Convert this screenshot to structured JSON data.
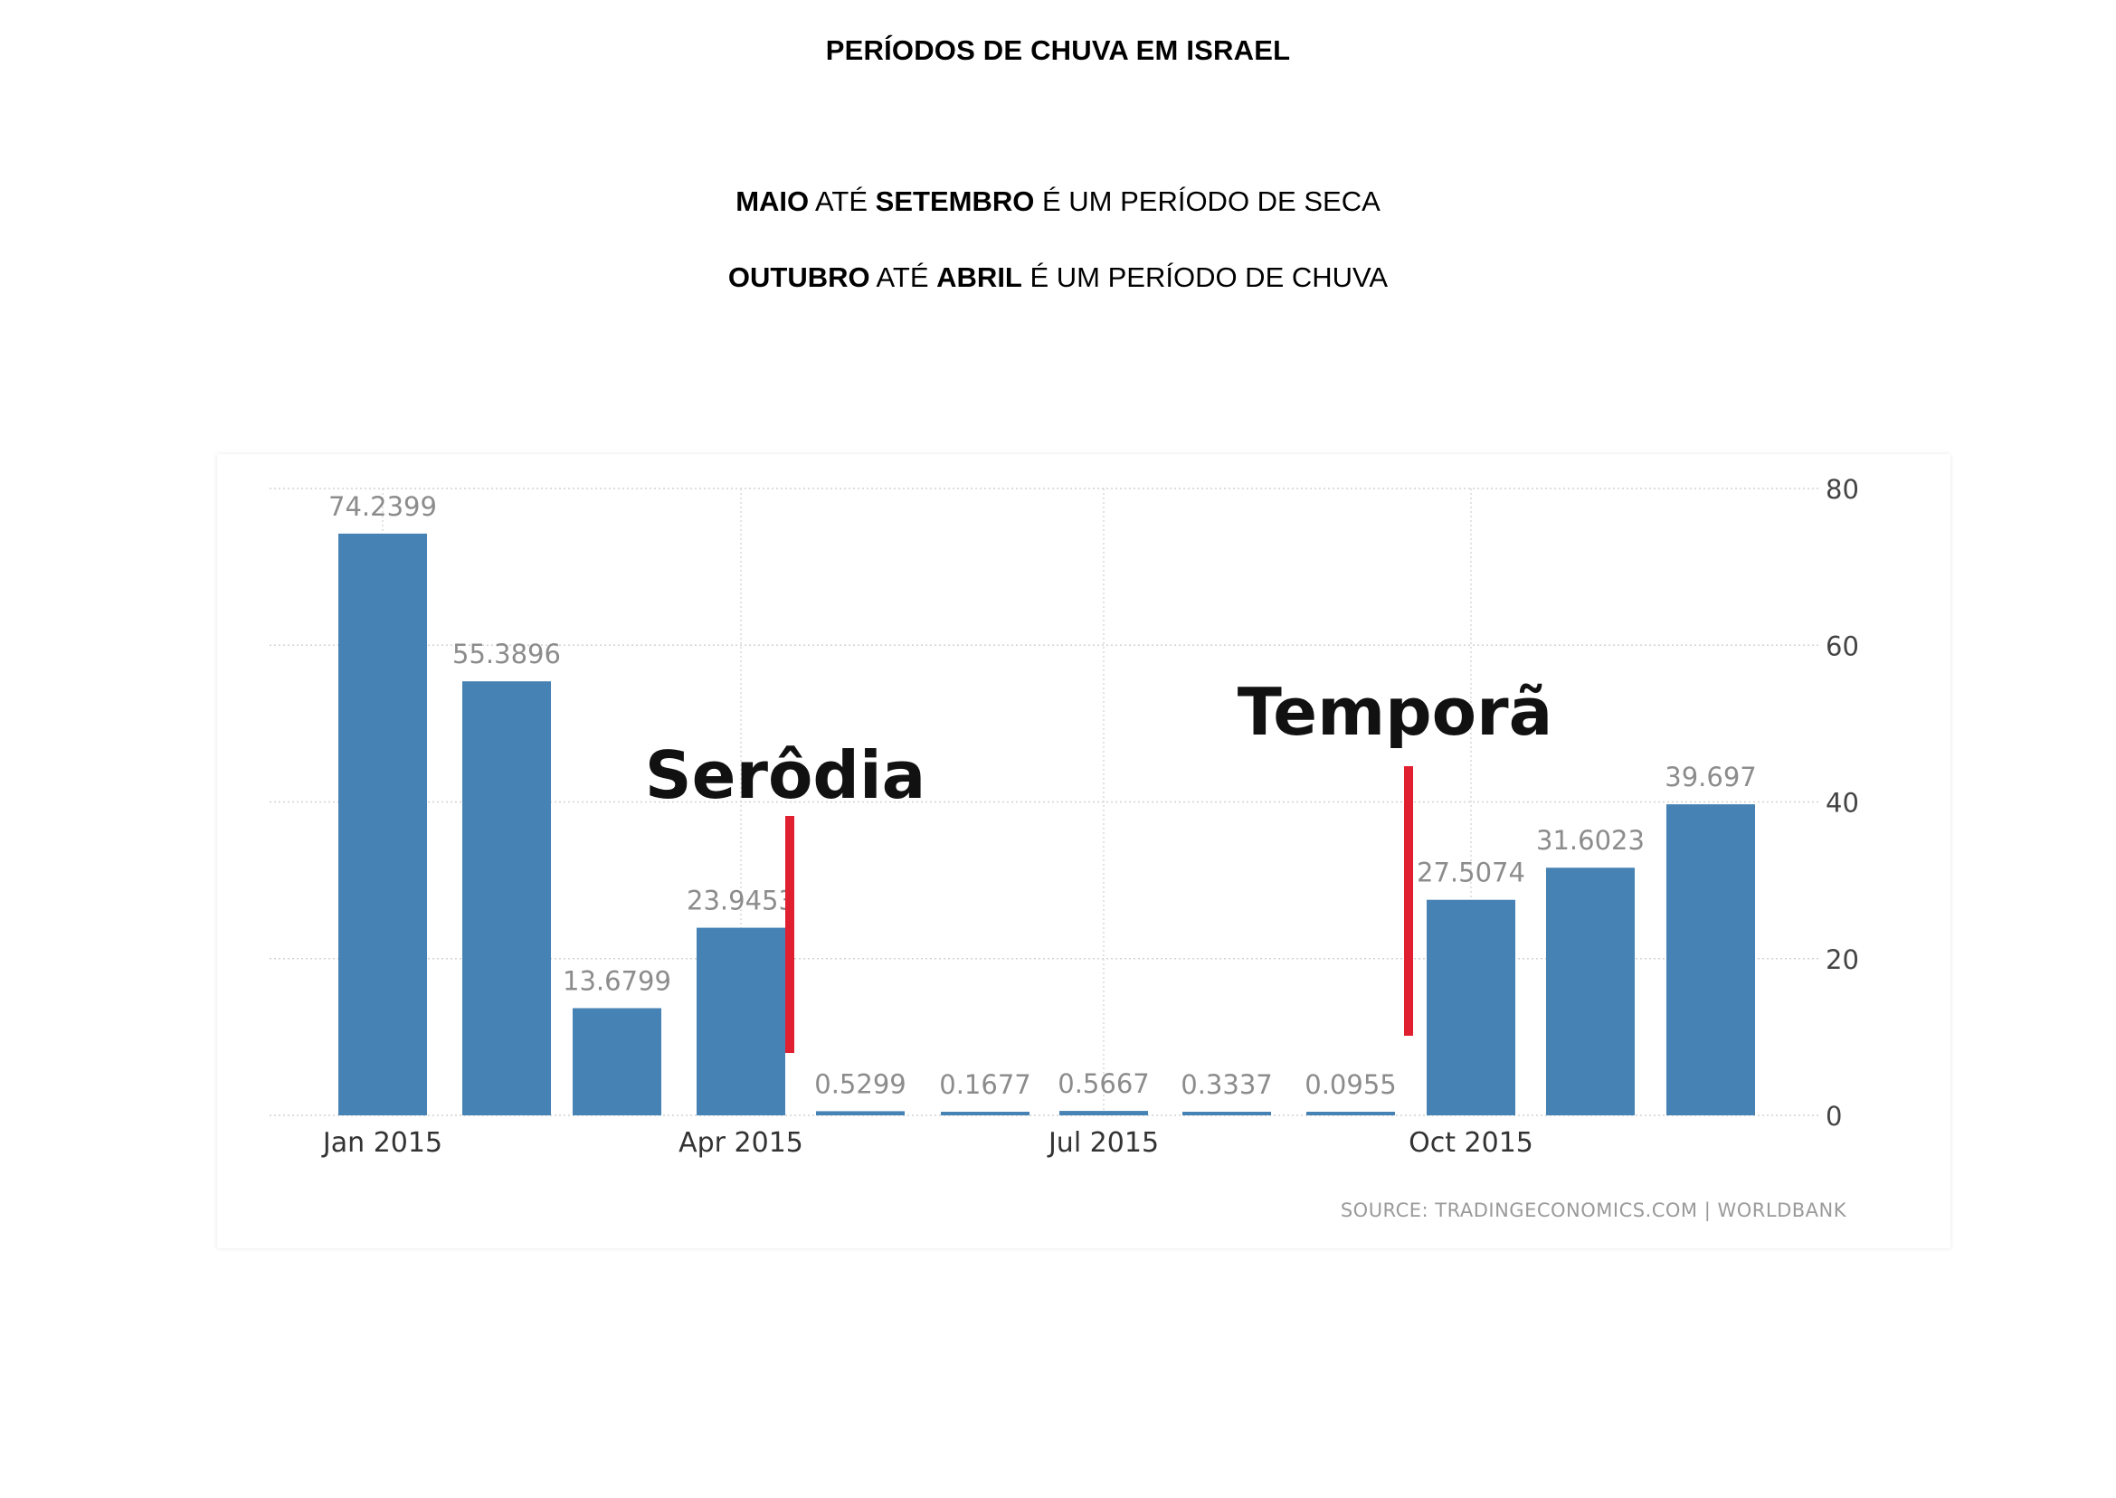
{
  "header": {
    "title": "PERÍODOS DE CHUVA EM ISRAEL",
    "line1": {
      "b1": "MAIO",
      "t1": " ATÉ ",
      "b2": "SETEMBRO",
      "t2": " É UM PERÍODO DE SECA"
    },
    "line2": {
      "b1": "OUTUBRO",
      "t1": " ATÉ ",
      "b2": "ABRIL",
      "t2": " É UM PERÍODO DE CHUVA"
    }
  },
  "chart_data": {
    "type": "bar",
    "categories": [
      "Jan 2015",
      "Feb 2015",
      "Mar 2015",
      "Apr 2015",
      "May 2015",
      "Jun 2015",
      "Jul 2015",
      "Aug 2015",
      "Sep 2015",
      "Oct 2015",
      "Nov 2015",
      "Dec 2015"
    ],
    "values": [
      74.2399,
      55.3896,
      13.6799,
      23.9453,
      0.5299,
      0.1677,
      0.5667,
      0.3337,
      0.0955,
      27.5074,
      31.6023,
      39.697
    ],
    "value_labels": [
      "74.2399",
      "55.3896",
      "13.6799",
      "23.9453",
      "0.5299",
      "0.1677",
      "0.5667",
      "0.3337",
      "0.0955",
      "27.5074",
      "31.6023",
      "39.697"
    ],
    "x_tick_labels": [
      "Jan 2015",
      "Apr 2015",
      "Jul 2015",
      "Oct 2015"
    ],
    "y_ticks": [
      0,
      20,
      40,
      60,
      80
    ],
    "ylim": [
      0,
      80
    ],
    "y_axis_side": "right",
    "grid": true,
    "bar_color": "#4682b4",
    "annotations": [
      {
        "text": "Serôdia",
        "marker_color": "#e02030",
        "marker_between": [
          "Apr 2015",
          "May 2015"
        ]
      },
      {
        "text": "Temporã",
        "marker_color": "#e02030",
        "marker_between": [
          "Sep 2015",
          "Oct 2015"
        ]
      }
    ],
    "source": "SOURCE:  TRADINGECONOMICS.COM  |  WORLDBANK"
  }
}
